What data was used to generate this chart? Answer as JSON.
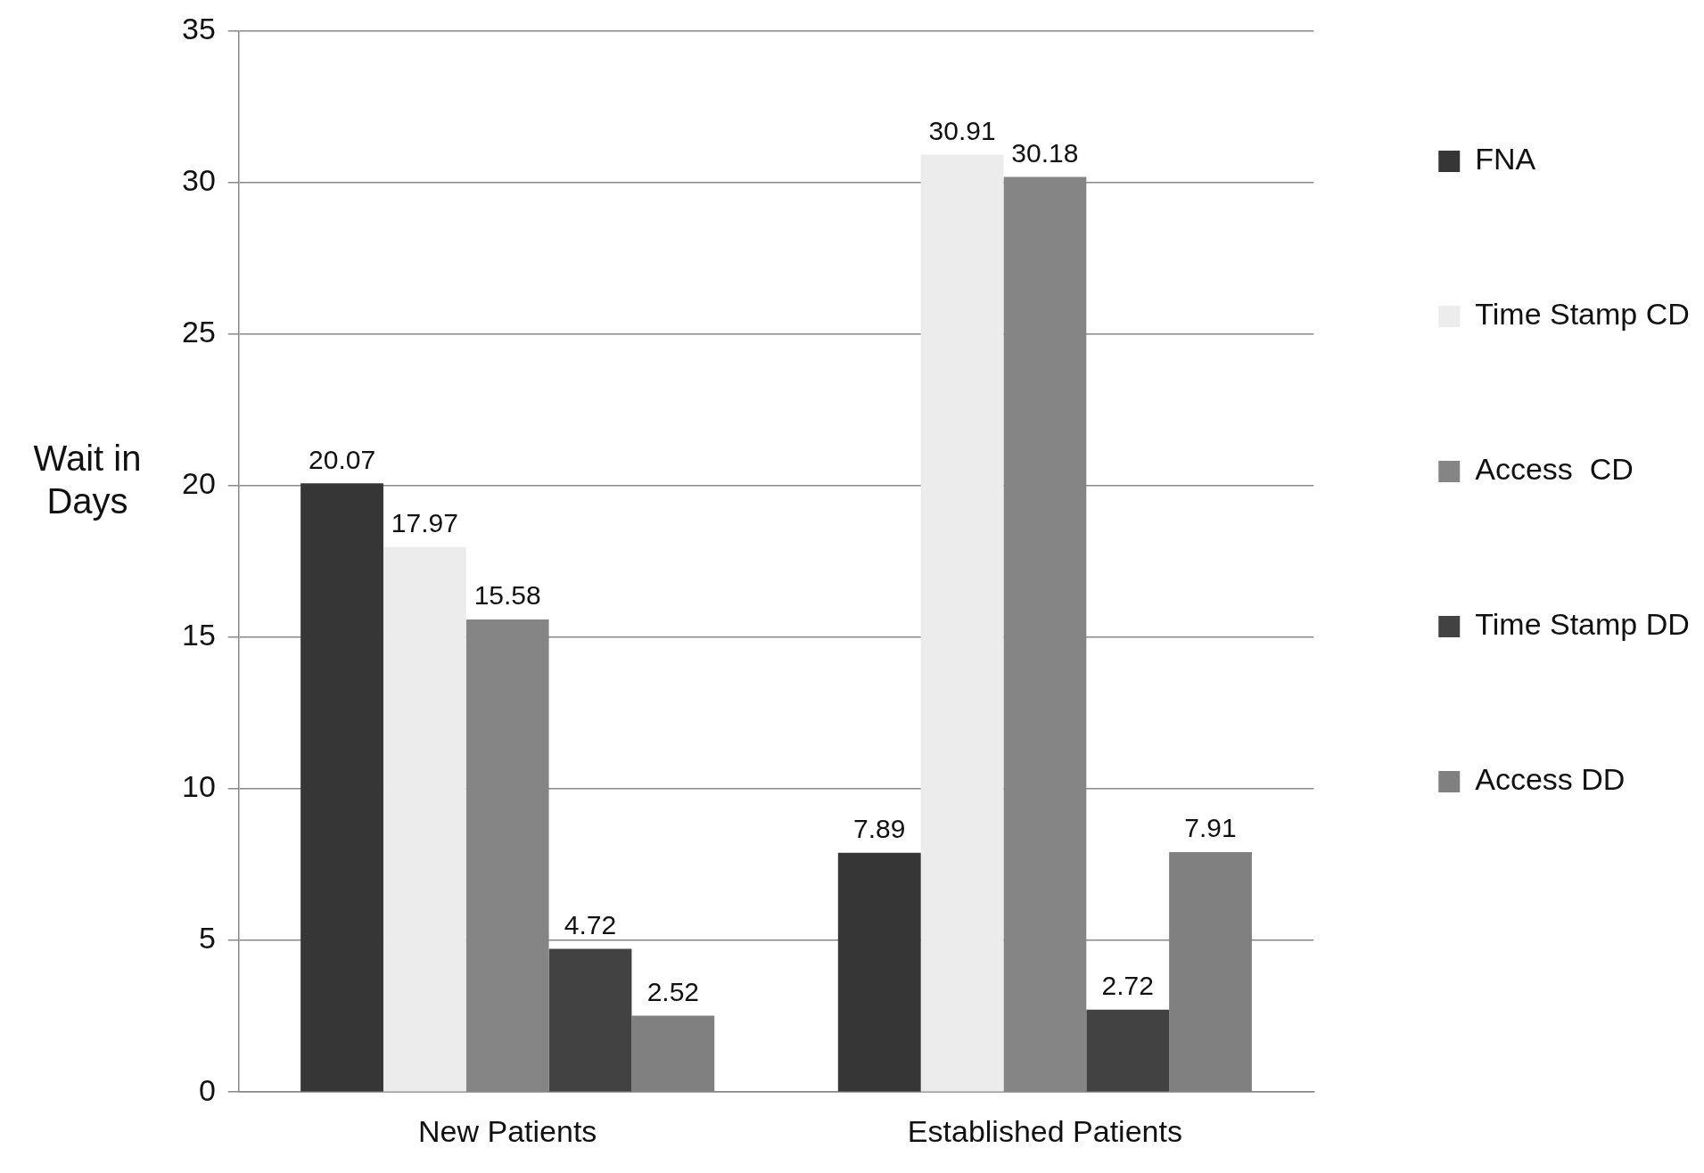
{
  "chart_data": {
    "type": "bar",
    "ylabel": "Wait in Days",
    "categories": [
      "New Patients",
      "Established Patients"
    ],
    "series": [
      {
        "name": "FNA",
        "color": "#363636",
        "values": [
          20.07,
          7.89
        ]
      },
      {
        "name": "Time Stamp CD",
        "color": "#ececec",
        "values": [
          17.97,
          30.91
        ]
      },
      {
        "name": "Access  CD",
        "color": "#858585",
        "values": [
          15.58,
          30.18
        ]
      },
      {
        "name": "Time Stamp DD",
        "color": "#424242",
        "values": [
          4.72,
          2.72
        ]
      },
      {
        "name": "Access DD",
        "color": "#808080",
        "values": [
          2.52,
          7.91
        ]
      }
    ],
    "ylim": [
      0,
      35
    ],
    "yticks": [
      0,
      5,
      10,
      15,
      20,
      25,
      30,
      35
    ],
    "grid": "y",
    "legend": "top right",
    "data_labels": true
  }
}
